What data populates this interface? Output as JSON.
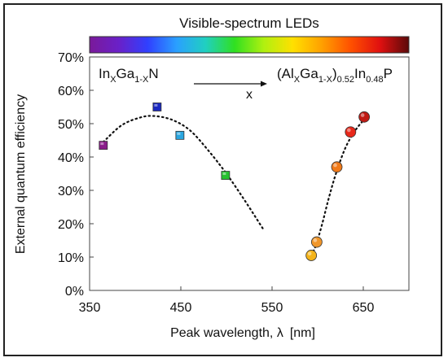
{
  "chart_data": {
    "type": "scatter",
    "title": "Visible-spectrum LEDs",
    "xlabel_text": "Peak wavelength, λ",
    "xlabel_unit": "[nm]",
    "ylabel": "External quantum efficiency",
    "xlim": [
      350,
      700
    ],
    "ylim": [
      0,
      70
    ],
    "x_ticks": [
      350,
      450,
      550,
      650
    ],
    "x_tick_labels": [
      "350",
      "450",
      "550",
      "650"
    ],
    "y_ticks": [
      0,
      10,
      20,
      30,
      40,
      50,
      60,
      70
    ],
    "y_tick_labels": [
      "0%",
      "10%",
      "20%",
      "30%",
      "40%",
      "50%",
      "60%",
      "70%"
    ],
    "grid": false,
    "series": [
      {
        "marker": "square",
        "points": [
          {
            "x": 365,
            "y": 43.5,
            "color": "#8a1d8a"
          },
          {
            "x": 424,
            "y": 55.0,
            "color": "#1a28c0"
          },
          {
            "x": 449,
            "y": 46.5,
            "color": "#2aa6e0"
          },
          {
            "x": 499,
            "y": 34.5,
            "color": "#27c12f"
          }
        ],
        "trend": [
          [
            365,
            44.5
          ],
          [
            385,
            49.5
          ],
          [
            405,
            51.8
          ],
          [
            420,
            52.3
          ],
          [
            440,
            51.2
          ],
          [
            460,
            48.0
          ],
          [
            480,
            42.0
          ],
          [
            500,
            35.0
          ],
          [
            520,
            27.0
          ],
          [
            540,
            18.5
          ]
        ]
      },
      {
        "marker": "circle",
        "points": [
          {
            "x": 593,
            "y": 10.5,
            "color": "#f4b41a"
          },
          {
            "x": 599,
            "y": 14.5,
            "color": "#f0962a"
          },
          {
            "x": 621,
            "y": 37.0,
            "color": "#f07a1a"
          },
          {
            "x": 636,
            "y": 47.5,
            "color": "#e8281a"
          },
          {
            "x": 651,
            "y": 52.0,
            "color": "#c01a14"
          }
        ],
        "trend": [
          [
            593,
            10.5
          ],
          [
            598,
            13.5
          ],
          [
            605,
            20.0
          ],
          [
            612,
            27.5
          ],
          [
            620,
            35.0
          ],
          [
            630,
            42.5
          ],
          [
            640,
            47.5
          ],
          [
            650,
            51.0
          ]
        ]
      }
    ],
    "annotations": {
      "left_base": "In",
      "left_sub1": "X",
      "left_mid": "Ga",
      "left_sub2": "1-X",
      "left_end": "N",
      "right_p1": "(Al",
      "right_s1": "X",
      "right_p2": "Ga",
      "right_s2": "1-X",
      "right_p3": ")",
      "right_s3": "0.52",
      "right_p4": "In",
      "right_s4": "0.48",
      "right_p5": "P",
      "arrow_label": "x"
    },
    "spectrum_colors": [
      "#7a1a9a",
      "#6a20c8",
      "#3040ff",
      "#2aa0ff",
      "#20d0c0",
      "#30e020",
      "#b0f010",
      "#ffe000",
      "#ffa000",
      "#ff5000",
      "#e01010",
      "#5a0a0a"
    ]
  }
}
